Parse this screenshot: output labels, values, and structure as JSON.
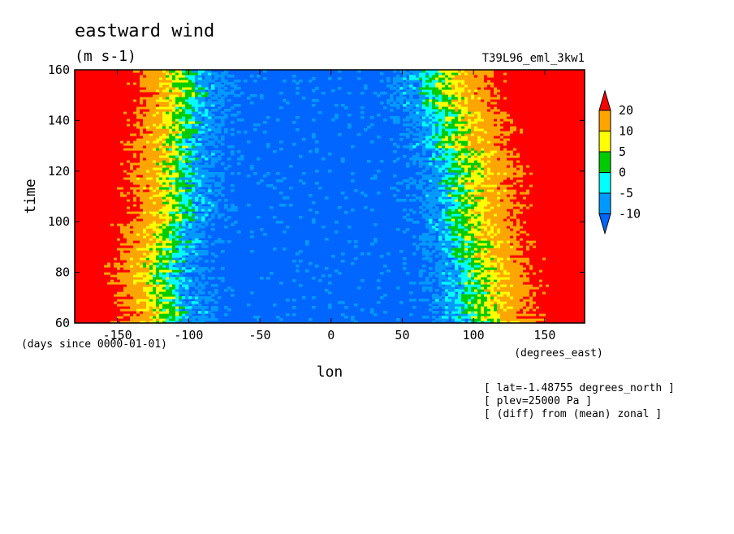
{
  "chart_data": {
    "type": "heatmap",
    "title": "eastward wind",
    "units": "(m s-1)",
    "run_id": "T39L96_eml_3kw1",
    "xlabel": "lon",
    "x_units": "(degrees_east)",
    "ylabel": "time",
    "y_units": "(days since 0000-01-01)",
    "xlim": [
      -180,
      178
    ],
    "ylim": [
      60,
      160
    ],
    "x_ticks": [
      -150,
      -100,
      -50,
      0,
      50,
      100,
      150
    ],
    "y_ticks": [
      60,
      80,
      100,
      120,
      140,
      160
    ],
    "colorbar": {
      "levels": [
        -10,
        -5,
        0,
        5,
        10,
        20
      ],
      "colors": [
        "#0066ff",
        "#0099ff",
        "#00ffff",
        "#00cc00",
        "#ffff00",
        "#ffa500",
        "#ff0000"
      ],
      "extend": "both"
    },
    "annotations": [
      "[ lat=-1.48755 degrees_north ]",
      "[ plev=25000 Pa ]",
      "[ (diff) from (mean) zonal ]"
    ],
    "pattern": {
      "description_values": "Contour field of eastward wind anomaly: strong westerlies (>20) near lon -180 to -120 and 140 to 178; easterlies (<-10) between roughly -100 and 80; westerly belt edges drift westward over time.",
      "west_boundary_lon": [
        [
          60,
          -105
        ],
        [
          80,
          -110
        ],
        [
          100,
          -100
        ],
        [
          120,
          -100
        ],
        [
          140,
          -95
        ],
        [
          160,
          -90
        ]
      ],
      "east_boundary_lon": [
        [
          60,
          95
        ],
        [
          80,
          90
        ],
        [
          100,
          85
        ],
        [
          120,
          80
        ],
        [
          140,
          70
        ],
        [
          160,
          65
        ]
      ]
    }
  }
}
